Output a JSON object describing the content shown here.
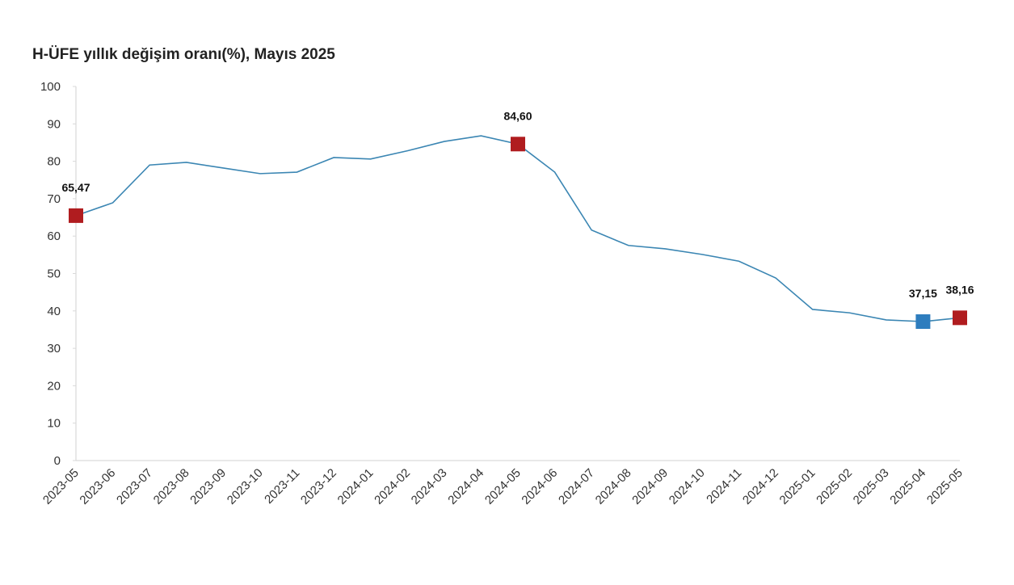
{
  "chart_data": {
    "type": "line",
    "title": "H-ÜFE yıllık değişim oranı(%), Mayıs 2025",
    "categories": [
      "2023-05",
      "2023-06",
      "2023-07",
      "2023-08",
      "2023-09",
      "2023-10",
      "2023-11",
      "2023-12",
      "2024-01",
      "2024-02",
      "2024-03",
      "2024-04",
      "2024-05",
      "2024-06",
      "2024-07",
      "2024-08",
      "2024-09",
      "2024-10",
      "2024-11",
      "2024-12",
      "2025-01",
      "2025-02",
      "2025-03",
      "2025-04",
      "2025-05"
    ],
    "values": [
      65.47,
      68.9,
      79.0,
      79.7,
      78.2,
      76.7,
      77.1,
      81.0,
      80.6,
      82.8,
      85.3,
      86.8,
      84.6,
      77.1,
      61.6,
      57.5,
      56.6,
      55.1,
      53.3,
      48.8,
      40.4,
      39.5,
      37.6,
      37.15,
      38.16
    ],
    "value_labels": [
      "65,47",
      null,
      null,
      null,
      null,
      null,
      null,
      null,
      null,
      null,
      null,
      null,
      "84,60",
      null,
      null,
      null,
      null,
      null,
      null,
      null,
      null,
      null,
      null,
      "37,15",
      "38,16"
    ],
    "marker_colors": [
      "#b01c1f",
      null,
      null,
      null,
      null,
      null,
      null,
      null,
      null,
      null,
      null,
      null,
      "#b01c1f",
      null,
      null,
      null,
      null,
      null,
      null,
      null,
      null,
      null,
      null,
      "#2e7dbe",
      "#b01c1f"
    ],
    "color": "#3b86b3",
    "ylim": [
      0,
      100
    ],
    "yticks": [
      0,
      10,
      20,
      30,
      40,
      50,
      60,
      70,
      80,
      90,
      100
    ],
    "grid": false
  }
}
